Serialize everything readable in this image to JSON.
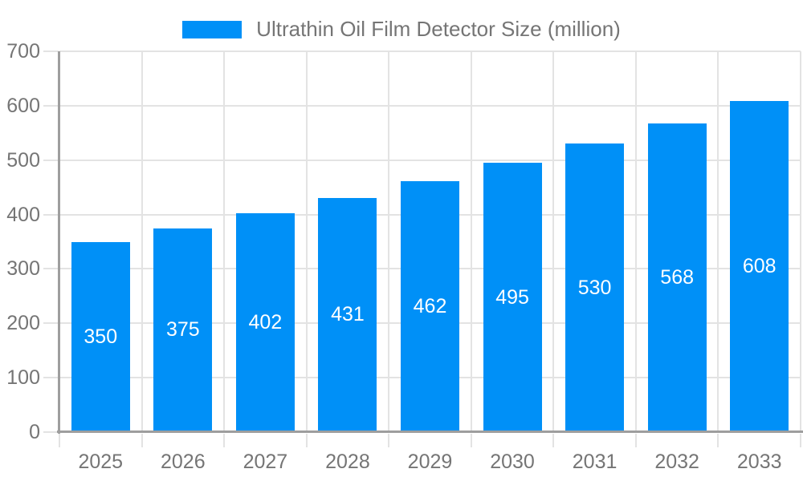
{
  "legend": {
    "label": "Ultrathin Oil Film Detector Size (million)"
  },
  "colors": {
    "bar": "#0090F7",
    "axis_text": "#757575",
    "grid": "#E3E3E3",
    "axis_line": "#9E9E9E",
    "value_label": "#FFFFFF",
    "background": "#FFFFFF"
  },
  "chart_data": {
    "type": "bar",
    "title": "Ultrathin Oil Film Detector Size (million)",
    "categories": [
      "2025",
      "2026",
      "2027",
      "2028",
      "2029",
      "2030",
      "2031",
      "2032",
      "2033"
    ],
    "values": [
      350,
      375,
      402,
      431,
      462,
      495,
      530,
      568,
      608
    ],
    "xlabel": "",
    "ylabel": "",
    "ylim": [
      0,
      700
    ],
    "yticks": [
      0,
      100,
      200,
      300,
      400,
      500,
      600,
      700
    ],
    "grid": true,
    "legend_position": "top",
    "value_labels": "centered-inside-bars"
  }
}
